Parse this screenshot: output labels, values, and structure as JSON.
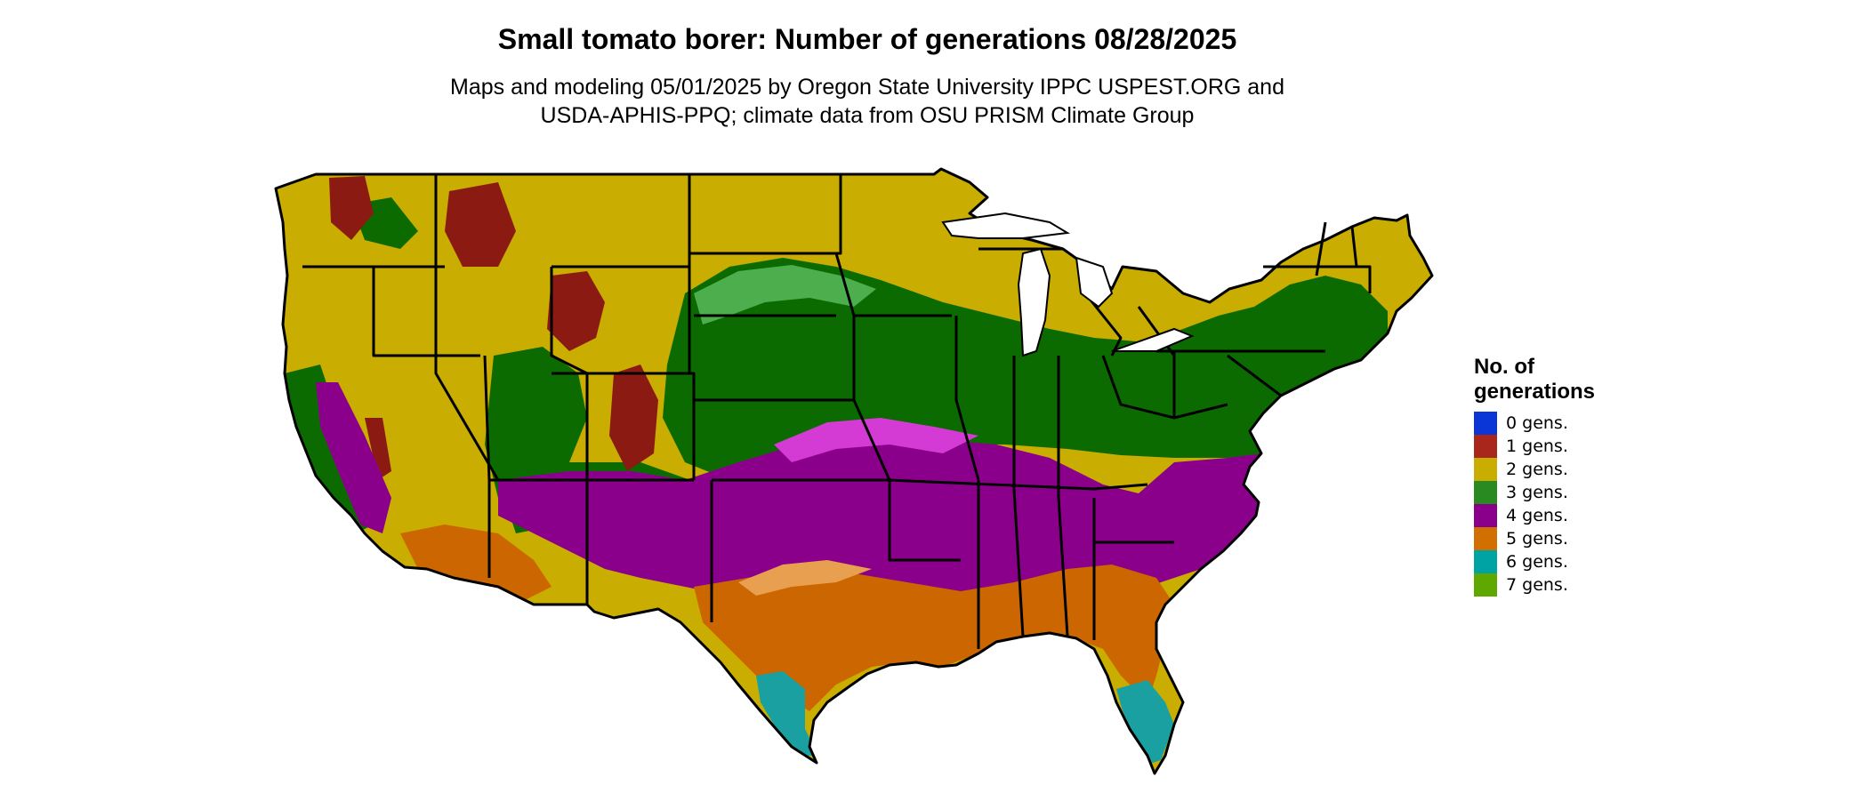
{
  "title": "Small tomato borer: Number of generations 08/28/2025",
  "subtitle": {
    "line1": "Maps and modeling 05/01/2025 by Oregon State University IPPC USPEST.ORG and",
    "line2": "USDA-APHIS-PPQ; climate data from OSU PRISM Climate Group"
  },
  "legend": {
    "title_line1": "No. of",
    "title_line2": "generations",
    "items": [
      {
        "label": "0 gens.",
        "color": "#0a36d8"
      },
      {
        "label": "1 gens.",
        "color": "#a8261c"
      },
      {
        "label": "2 gens.",
        "color": "#c9ad00"
      },
      {
        "label": "3 gens.",
        "color": "#2a8a22"
      },
      {
        "label": "4 gens.",
        "color": "#8b008b"
      },
      {
        "label": "5 gens.",
        "color": "#d16f00"
      },
      {
        "label": "6 gens.",
        "color": "#00a3a3"
      },
      {
        "label": "7 gens.",
        "color": "#5fa800"
      }
    ]
  },
  "map_colors": {
    "gen1": "#8b1a12",
    "gen2": "#c9ad00",
    "gen3": "#0b6b00",
    "gen3_light": "#4cae4c",
    "gen4": "#8b008b",
    "gen4_light": "#d43ad4",
    "gen5": "#cc6600",
    "gen5_light": "#e8a050",
    "gen6": "#1aa0a0",
    "border": "#000000"
  }
}
